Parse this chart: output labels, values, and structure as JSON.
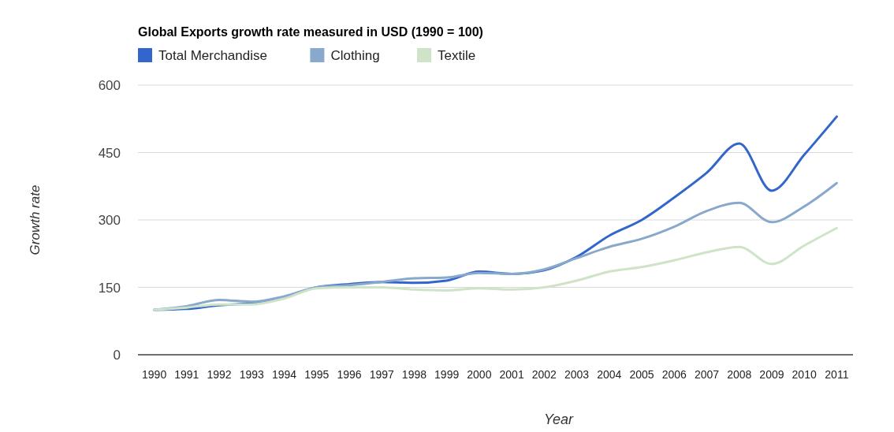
{
  "chart_data": {
    "type": "line",
    "title": "Global Exports growth rate measured in USD (1990 = 100)",
    "xlabel": "Year",
    "ylabel": "Growth rate",
    "x": [
      1990,
      1991,
      1992,
      1993,
      1994,
      1995,
      1996,
      1997,
      1998,
      1999,
      2000,
      2001,
      2002,
      2003,
      2004,
      2005,
      2006,
      2007,
      2008,
      2009,
      2010,
      2011
    ],
    "series": [
      {
        "name": "Total Merchandise",
        "color": "#3366cc",
        "values": [
          100,
          102,
          110,
          115,
          128,
          150,
          157,
          162,
          160,
          165,
          185,
          180,
          188,
          218,
          265,
          300,
          350,
          405,
          470,
          365,
          445,
          530
        ]
      },
      {
        "name": "Clothing",
        "color": "#88a8cc",
        "values": [
          100,
          108,
          122,
          118,
          130,
          150,
          155,
          162,
          170,
          172,
          182,
          180,
          190,
          215,
          240,
          258,
          285,
          320,
          338,
          295,
          330,
          382
        ]
      },
      {
        "name": "Textile",
        "color": "#cfe3c8",
        "values": [
          100,
          105,
          112,
          112,
          125,
          148,
          150,
          150,
          145,
          143,
          148,
          145,
          150,
          165,
          185,
          195,
          210,
          228,
          240,
          202,
          243,
          282
        ]
      }
    ],
    "xlim": [
      1989.5,
      2011.5
    ],
    "xticks": [
      1990,
      1991,
      1992,
      1993,
      1994,
      1995,
      1996,
      1997,
      1998,
      1999,
      2000,
      2001,
      2002,
      2003,
      2004,
      2005,
      2006,
      2007,
      2008,
      2009,
      2010,
      2011
    ],
    "ylim": [
      0,
      600
    ],
    "yticks": [
      0,
      150,
      300,
      450,
      600
    ],
    "grid": "y",
    "legend": "top left",
    "marker": "none",
    "line_style": "solid"
  }
}
